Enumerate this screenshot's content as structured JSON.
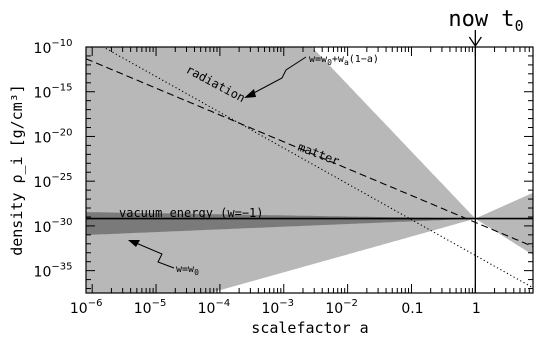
{
  "chart_data": {
    "type": "line",
    "xscale": "log",
    "yscale": "log",
    "xlim": [
      8e-07,
      8
    ],
    "ylim": [
      3.16e-38,
      1e-10
    ],
    "xlabel": "scalefactor a",
    "ylabel": "density ρ_i [g/cm³]",
    "grid": false,
    "x_ticks": [
      {
        "value": 1e-06,
        "base": "10",
        "exp": "−6"
      },
      {
        "value": 1e-05,
        "base": "10",
        "exp": "−5"
      },
      {
        "value": 0.0001,
        "base": "10",
        "exp": "−4"
      },
      {
        "value": 0.001,
        "base": "10",
        "exp": "−3"
      },
      {
        "value": 0.01,
        "base": "10",
        "exp": "−2"
      },
      {
        "value": 0.1,
        "base": "0.1",
        "exp": ""
      },
      {
        "value": 1,
        "base": "1",
        "exp": ""
      }
    ],
    "y_ticks": [
      {
        "value": 1e-10,
        "base": "10",
        "exp": "−10"
      },
      {
        "value": 1e-15,
        "base": "10",
        "exp": "−15"
      },
      {
        "value": 1e-20,
        "base": "10",
        "exp": "−20"
      },
      {
        "value": 1e-25,
        "base": "10",
        "exp": "−25"
      },
      {
        "value": 1e-30,
        "base": "10",
        "exp": "−30"
      },
      {
        "value": 1e-35,
        "base": "10",
        "exp": "−35"
      }
    ],
    "series": [
      {
        "name": "radiation",
        "style": "dotted",
        "slope": -4,
        "rho0": 5e-34
      },
      {
        "name": "matter",
        "style": "dashed",
        "slope": -3,
        "rho0": 2.5e-30
      },
      {
        "name": "vacuum energy (w=−1)",
        "style": "solid",
        "slope": 0,
        "rho0": 6.5e-30
      }
    ],
    "bands": [
      {
        "label": "w=w0+wa(1−a)",
        "color": "#b8b8b8",
        "upper_slope_early": -7.5,
        "lower_slope_early": 2.0,
        "upper_slope_late": 3.2,
        "lower_slope_late": -4.5,
        "pivot_rho": 6.5e-30
      },
      {
        "label": "w=w0",
        "color": "#7a7a7a",
        "upper_slope": -0.12,
        "lower_slope": 0.3,
        "pivot_rho": 6.5e-30
      }
    ],
    "annotations": {
      "band_formula_main": "w=w",
      "band_formula_sub0": "0",
      "band_formula_rest": "+w",
      "band_formula_suba": "a",
      "band_formula_tail": "(1−a)",
      "radiation_label": "radiation",
      "matter_label": "matter",
      "vacuum_label": "vacuum energy (w=−1)",
      "w0_main": "w=w",
      "w0_sub": "0",
      "now_label": "now t",
      "now_sub": "0",
      "now_x": 1
    },
    "colors": {
      "light_band": "#b8b8b8",
      "dark_band": "#7a7a7a",
      "line": "#000000"
    }
  }
}
